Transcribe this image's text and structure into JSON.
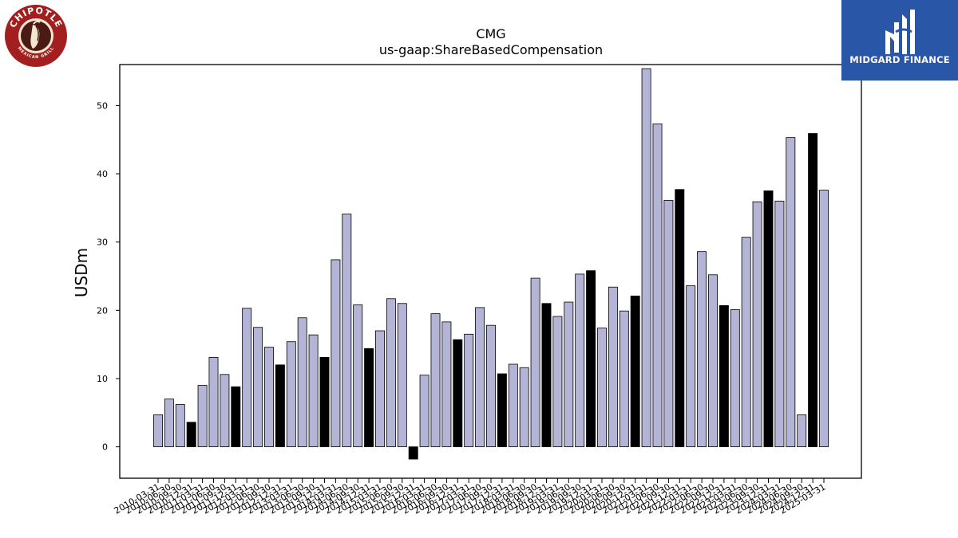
{
  "logos": {
    "left_brand_top": "CHIPOTLE",
    "left_brand_bottom": "MEXICAN GRILL",
    "right_brand": "MIDGARD FINANCE"
  },
  "colors": {
    "bar_fill": "#b4b4d6",
    "bar_highlight": "#000000",
    "bar_stroke": "#000000",
    "brand_blue": "#2a56a8",
    "chipotle_red": "#a31f1f"
  },
  "chart_data": {
    "type": "bar",
    "title": "CMG",
    "subtitle": "us-gaap:ShareBasedCompensation",
    "xlabel": "",
    "ylabel": "USDm",
    "ylim": [
      -4.6,
      56
    ],
    "yticks": [
      0,
      10,
      20,
      30,
      40,
      50
    ],
    "grid": false,
    "categories": [
      "2010-03-31",
      "2010-06-30",
      "2010-09-30",
      "2010-12-31",
      "2011-03-31",
      "2011-06-30",
      "2011-09-30",
      "2011-12-31",
      "2012-03-31",
      "2012-06-30",
      "2012-09-30",
      "2012-12-31",
      "2013-03-31",
      "2013-06-30",
      "2013-09-30",
      "2013-12-31",
      "2014-03-31",
      "2014-06-30",
      "2014-09-30",
      "2014-12-31",
      "2015-03-31",
      "2015-06-30",
      "2015-09-30",
      "2015-12-31",
      "2016-03-31",
      "2016-06-30",
      "2016-09-30",
      "2016-12-31",
      "2017-03-31",
      "2017-06-30",
      "2017-09-30",
      "2017-12-31",
      "2018-03-31",
      "2018-06-30",
      "2018-09-30",
      "2018-12-31",
      "2019-03-31",
      "2019-06-30",
      "2019-09-30",
      "2019-12-31",
      "2020-03-31",
      "2020-06-30",
      "2020-09-30",
      "2020-12-31",
      "2021-03-31",
      "2021-06-30",
      "2021-09-30",
      "2021-12-31",
      "2022-03-31",
      "2022-06-30",
      "2022-09-30",
      "2022-12-31",
      "2023-03-31",
      "2023-06-30",
      "2023-09-30",
      "2023-12-31",
      "2024-03-31",
      "2024-06-30",
      "2024-09-30",
      "2024-12-31",
      "2025-03-31"
    ],
    "values": [
      4.7,
      7.0,
      6.2,
      3.6,
      9.0,
      13.1,
      10.6,
      8.8,
      20.3,
      17.5,
      14.6,
      12.0,
      15.4,
      18.9,
      16.4,
      13.1,
      27.4,
      34.1,
      20.8,
      14.4,
      17.0,
      21.7,
      21.0,
      -1.8,
      10.5,
      19.5,
      18.3,
      15.7,
      16.5,
      20.4,
      17.8,
      10.7,
      12.1,
      11.6,
      24.7,
      21.0,
      19.1,
      21.2,
      25.3,
      25.8,
      17.4,
      23.4,
      19.9,
      22.1,
      55.4,
      47.3,
      36.1,
      37.7,
      23.6,
      28.6,
      25.2,
      20.7,
      20.1,
      30.7,
      35.9,
      37.5,
      36.0,
      45.3,
      4.7,
      45.9,
      37.6
    ],
    "highlighted": [
      false,
      false,
      false,
      true,
      false,
      false,
      false,
      true,
      false,
      false,
      false,
      true,
      false,
      false,
      false,
      true,
      false,
      false,
      false,
      true,
      false,
      false,
      false,
      true,
      false,
      false,
      false,
      true,
      false,
      false,
      false,
      true,
      false,
      false,
      false,
      true,
      false,
      false,
      false,
      true,
      false,
      false,
      false,
      true,
      false,
      false,
      false,
      true,
      false,
      false,
      false,
      true,
      false,
      false,
      false,
      true,
      false,
      false,
      false,
      true,
      false
    ]
  }
}
